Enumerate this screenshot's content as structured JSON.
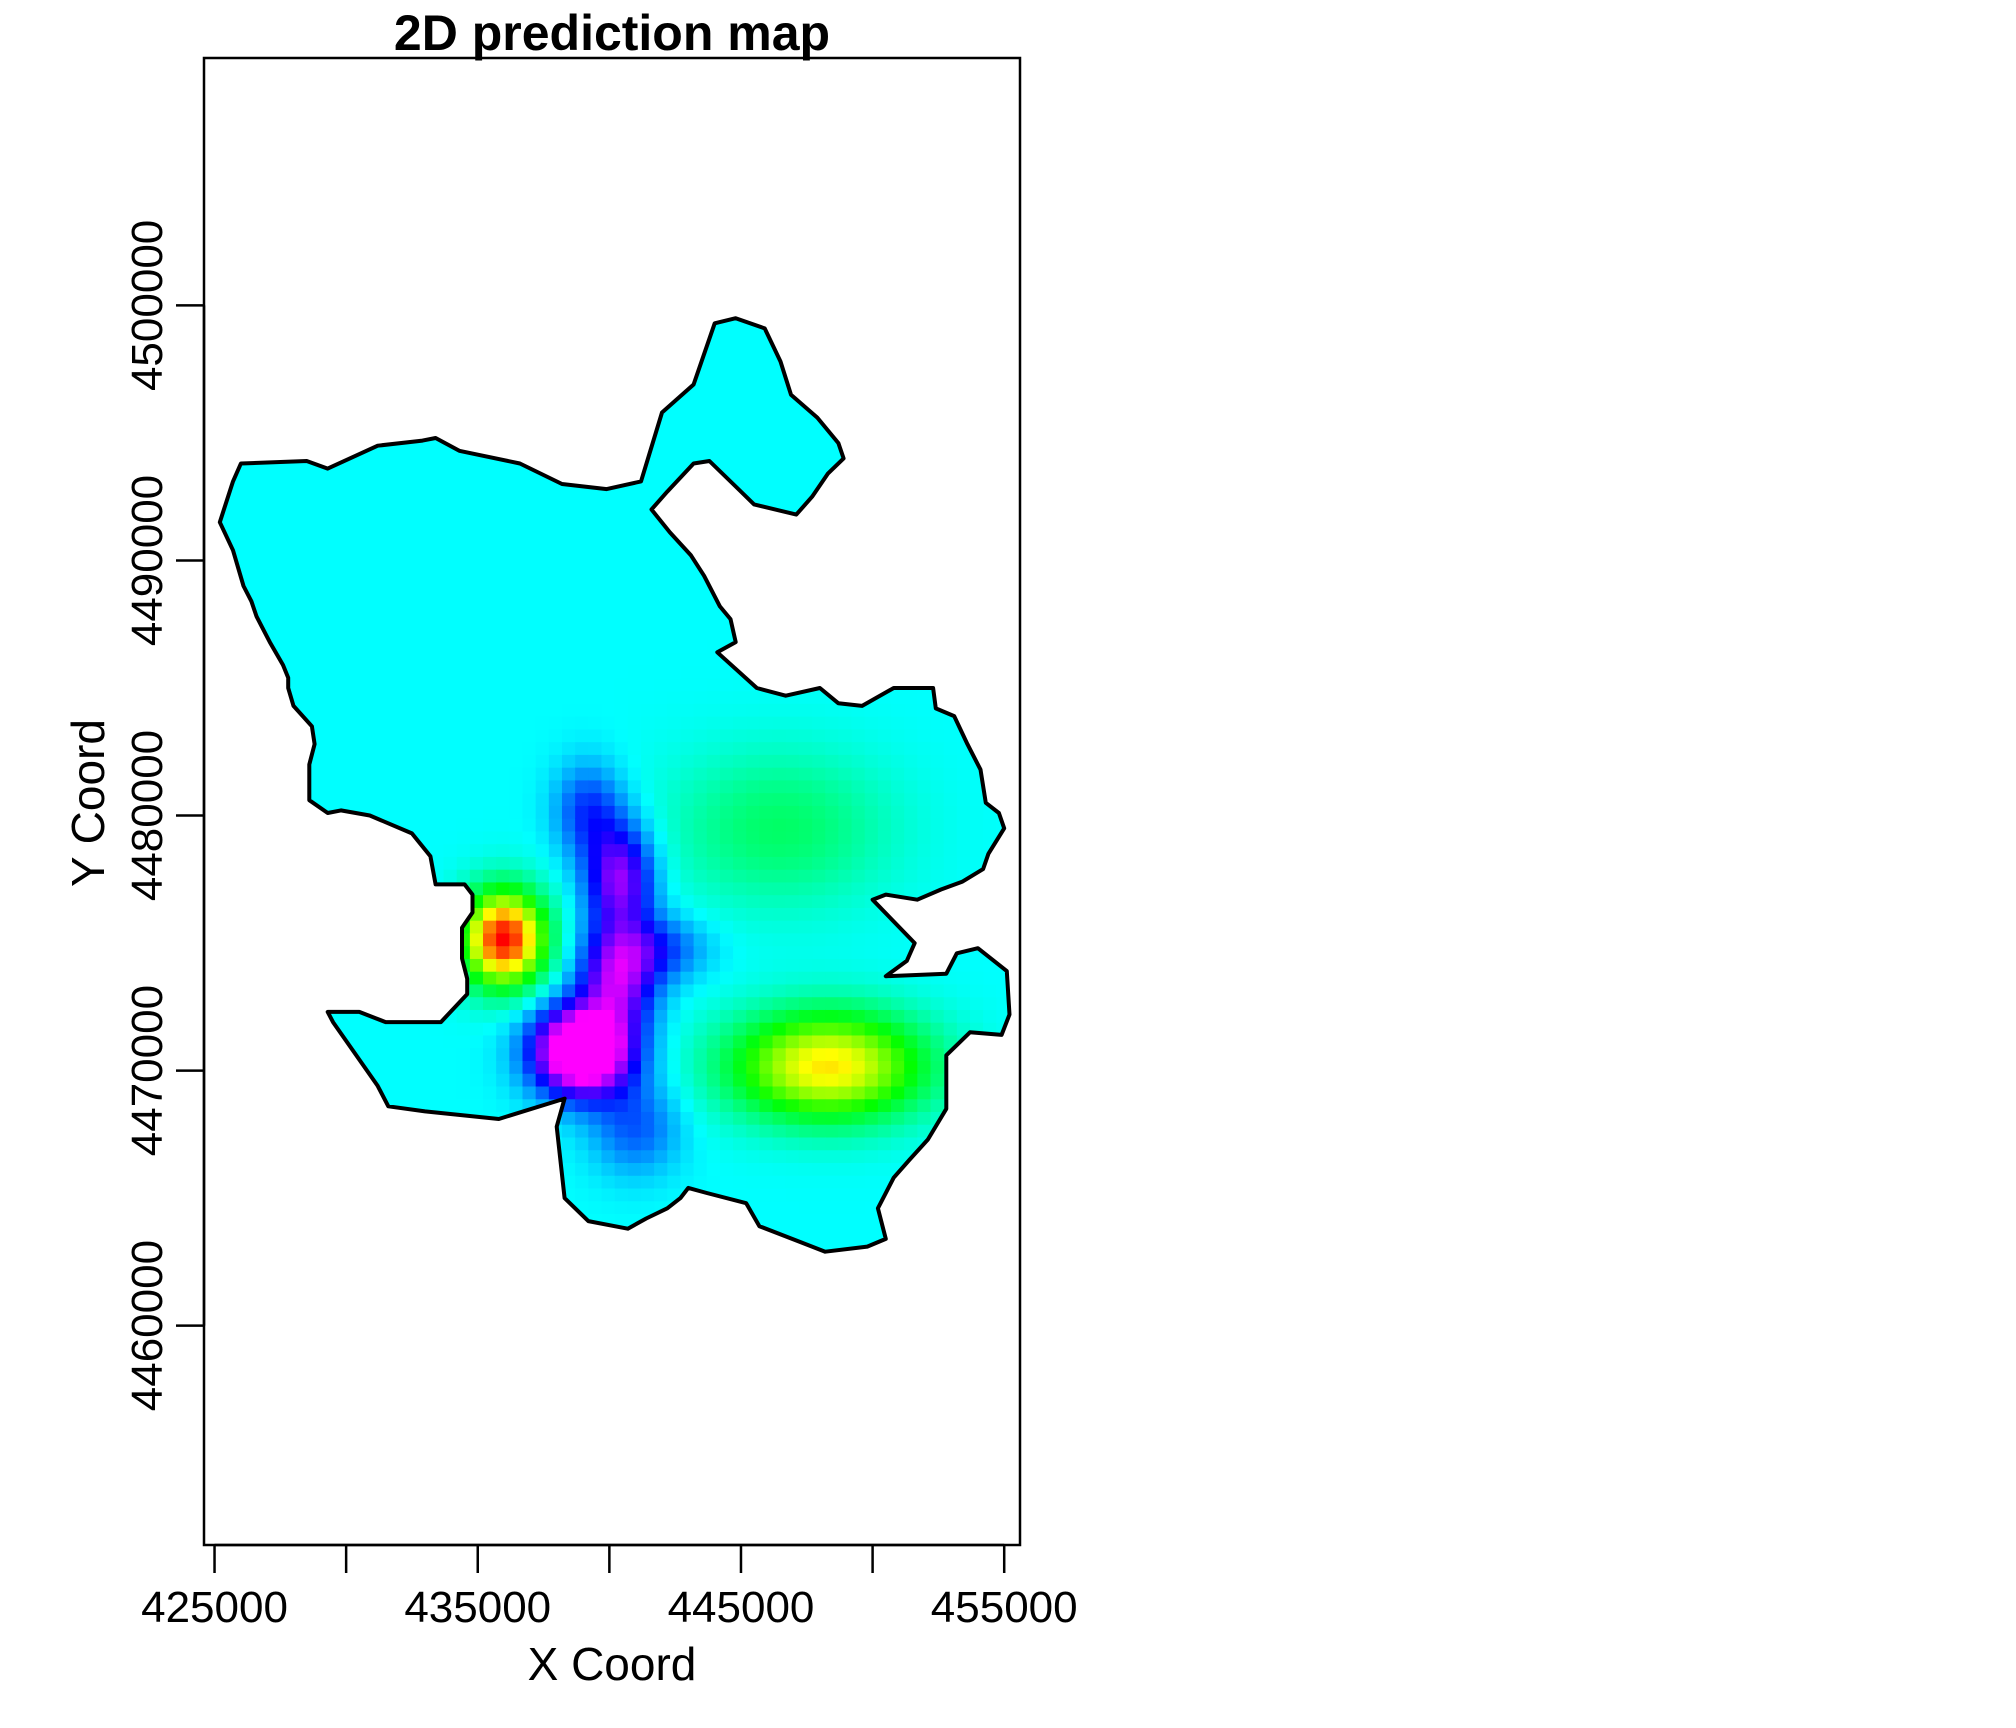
{
  "chart_data": {
    "type": "heatmap",
    "title": "2D prediction map",
    "xlabel": "X Coord",
    "ylabel": "Y Coord",
    "xlim": [
      424600,
      455600
    ],
    "ylim": [
      4451400,
      4509700
    ],
    "x_ticks": [
      425000,
      430000,
      435000,
      440000,
      445000,
      450000,
      455000
    ],
    "x_tick_labels": [
      "425000",
      "",
      "435000",
      "",
      "445000",
      "",
      "455000"
    ],
    "y_ticks": [
      4460000,
      4470000,
      4480000,
      4490000,
      4500000
    ],
    "y_tick_labels": [
      "4460000",
      "4470000",
      "4480000",
      "4490000",
      "4500000"
    ],
    "grid": false,
    "legend": "none",
    "colors": {
      "background_field": "#00ff80",
      "boundary": "#000000",
      "low": "#ff00ff",
      "high": "#ff0000"
    },
    "field": {
      "base_level": 0.4,
      "features": [
        {
          "kind": "high",
          "x": 436000,
          "y": 4475200,
          "amplitude": 0.6,
          "sx": 1100,
          "sy": 1300
        },
        {
          "kind": "high",
          "x": 448300,
          "y": 4470200,
          "amplitude": 0.42,
          "sx": 2600,
          "sy": 1500
        },
        {
          "kind": "high",
          "x": 446500,
          "y": 4479500,
          "amplitude": 0.12,
          "sx": 3000,
          "sy": 2200
        },
        {
          "kind": "low",
          "x": 439000,
          "y": 4470800,
          "amplitude": 0.62,
          "sx": 1300,
          "sy": 1200
        },
        {
          "kind": "low",
          "x": 440300,
          "y": 4473500,
          "amplitude": 0.3,
          "sx": 1000,
          "sy": 1300
        },
        {
          "kind": "low",
          "x": 440400,
          "y": 4477500,
          "amplitude": 0.32,
          "sx": 900,
          "sy": 1500
        },
        {
          "kind": "low",
          "x": 441600,
          "y": 4474800,
          "amplitude": 0.16,
          "sx": 1400,
          "sy": 900
        },
        {
          "kind": "low",
          "x": 439200,
          "y": 4480200,
          "amplitude": 0.16,
          "sx": 900,
          "sy": 1300
        },
        {
          "kind": "low",
          "x": 441000,
          "y": 4467800,
          "amplitude": 0.13,
          "sx": 1200,
          "sy": 1300
        }
      ]
    },
    "boundary": [
      [
        425200,
        4491500
      ],
      [
        425700,
        4493100
      ],
      [
        426000,
        4493800
      ],
      [
        428500,
        4493900
      ],
      [
        429300,
        4493600
      ],
      [
        431200,
        4494500
      ],
      [
        432900,
        4494700
      ],
      [
        433400,
        4494800
      ],
      [
        434300,
        4494300
      ],
      [
        436600,
        4493800
      ],
      [
        438200,
        4493000
      ],
      [
        439900,
        4492800
      ],
      [
        441200,
        4493100
      ],
      [
        442000,
        4495800
      ],
      [
        443200,
        4496900
      ],
      [
        444000,
        4499300
      ],
      [
        444800,
        4499500
      ],
      [
        445900,
        4499100
      ],
      [
        446500,
        4497800
      ],
      [
        446900,
        4496500
      ],
      [
        447900,
        4495600
      ],
      [
        448700,
        4494600
      ],
      [
        448900,
        4494000
      ],
      [
        448300,
        4493400
      ],
      [
        447700,
        4492500
      ],
      [
        447100,
        4491800
      ],
      [
        445500,
        4492200
      ],
      [
        444800,
        4492900
      ],
      [
        443800,
        4493900
      ],
      [
        443200,
        4493800
      ],
      [
        442200,
        4492700
      ],
      [
        441600,
        4492000
      ],
      [
        442300,
        4491100
      ],
      [
        443100,
        4490200
      ],
      [
        443600,
        4489400
      ],
      [
        444200,
        4488200
      ],
      [
        444600,
        4487700
      ],
      [
        444800,
        4486800
      ],
      [
        444100,
        4486400
      ],
      [
        445600,
        4485000
      ],
      [
        446700,
        4484700
      ],
      [
        448000,
        4485000
      ],
      [
        448700,
        4484400
      ],
      [
        449600,
        4484300
      ],
      [
        450800,
        4485000
      ],
      [
        452300,
        4485000
      ],
      [
        452400,
        4484200
      ],
      [
        453100,
        4483900
      ],
      [
        453600,
        4482800
      ],
      [
        454100,
        4481800
      ],
      [
        454300,
        4480500
      ],
      [
        454800,
        4480100
      ],
      [
        455000,
        4479500
      ],
      [
        454400,
        4478500
      ],
      [
        454200,
        4477900
      ],
      [
        453400,
        4477400
      ],
      [
        452600,
        4477100
      ],
      [
        451700,
        4476700
      ],
      [
        450500,
        4476900
      ],
      [
        450000,
        4476700
      ],
      [
        451600,
        4475000
      ],
      [
        451300,
        4474300
      ],
      [
        450500,
        4473700
      ],
      [
        452800,
        4473800
      ],
      [
        453200,
        4474600
      ],
      [
        454000,
        4474800
      ],
      [
        455100,
        4473900
      ],
      [
        455200,
        4472200
      ],
      [
        454900,
        4471400
      ],
      [
        453700,
        4471500
      ],
      [
        452800,
        4470600
      ],
      [
        452800,
        4468500
      ],
      [
        452100,
        4467300
      ],
      [
        451400,
        4466500
      ],
      [
        450800,
        4465800
      ],
      [
        450200,
        4464600
      ],
      [
        450500,
        4463400
      ],
      [
        449800,
        4463100
      ],
      [
        448200,
        4462900
      ],
      [
        447200,
        4463300
      ],
      [
        445700,
        4463900
      ],
      [
        445200,
        4464800
      ],
      [
        443700,
        4465200
      ],
      [
        443000,
        4465400
      ],
      [
        442700,
        4465000
      ],
      [
        442200,
        4464600
      ],
      [
        441400,
        4464200
      ],
      [
        440700,
        4463800
      ],
      [
        439200,
        4464100
      ],
      [
        438300,
        4465000
      ],
      [
        438000,
        4467800
      ],
      [
        438300,
        4468900
      ],
      [
        435800,
        4468100
      ],
      [
        433000,
        4468400
      ],
      [
        431600,
        4468600
      ],
      [
        431200,
        4469400
      ],
      [
        429500,
        4471900
      ],
      [
        429300,
        4472300
      ],
      [
        430500,
        4472300
      ],
      [
        431500,
        4471900
      ],
      [
        433600,
        4471900
      ],
      [
        434600,
        4473000
      ],
      [
        434600,
        4473600
      ],
      [
        434400,
        4474400
      ],
      [
        434400,
        4475600
      ],
      [
        434800,
        4476200
      ],
      [
        434800,
        4476900
      ],
      [
        434500,
        4477300
      ],
      [
        433400,
        4477300
      ],
      [
        433200,
        4478400
      ],
      [
        432500,
        4479300
      ],
      [
        430900,
        4480000
      ],
      [
        429800,
        4480200
      ],
      [
        429300,
        4480100
      ],
      [
        428600,
        4480600
      ],
      [
        428600,
        4482000
      ],
      [
        428800,
        4482800
      ],
      [
        428700,
        4483500
      ],
      [
        428000,
        4484300
      ],
      [
        427800,
        4485000
      ],
      [
        427800,
        4485400
      ],
      [
        427600,
        4485900
      ],
      [
        427100,
        4486800
      ],
      [
        426600,
        4487800
      ],
      [
        426400,
        4488400
      ],
      [
        426100,
        4489000
      ],
      [
        425700,
        4490400
      ]
    ]
  }
}
